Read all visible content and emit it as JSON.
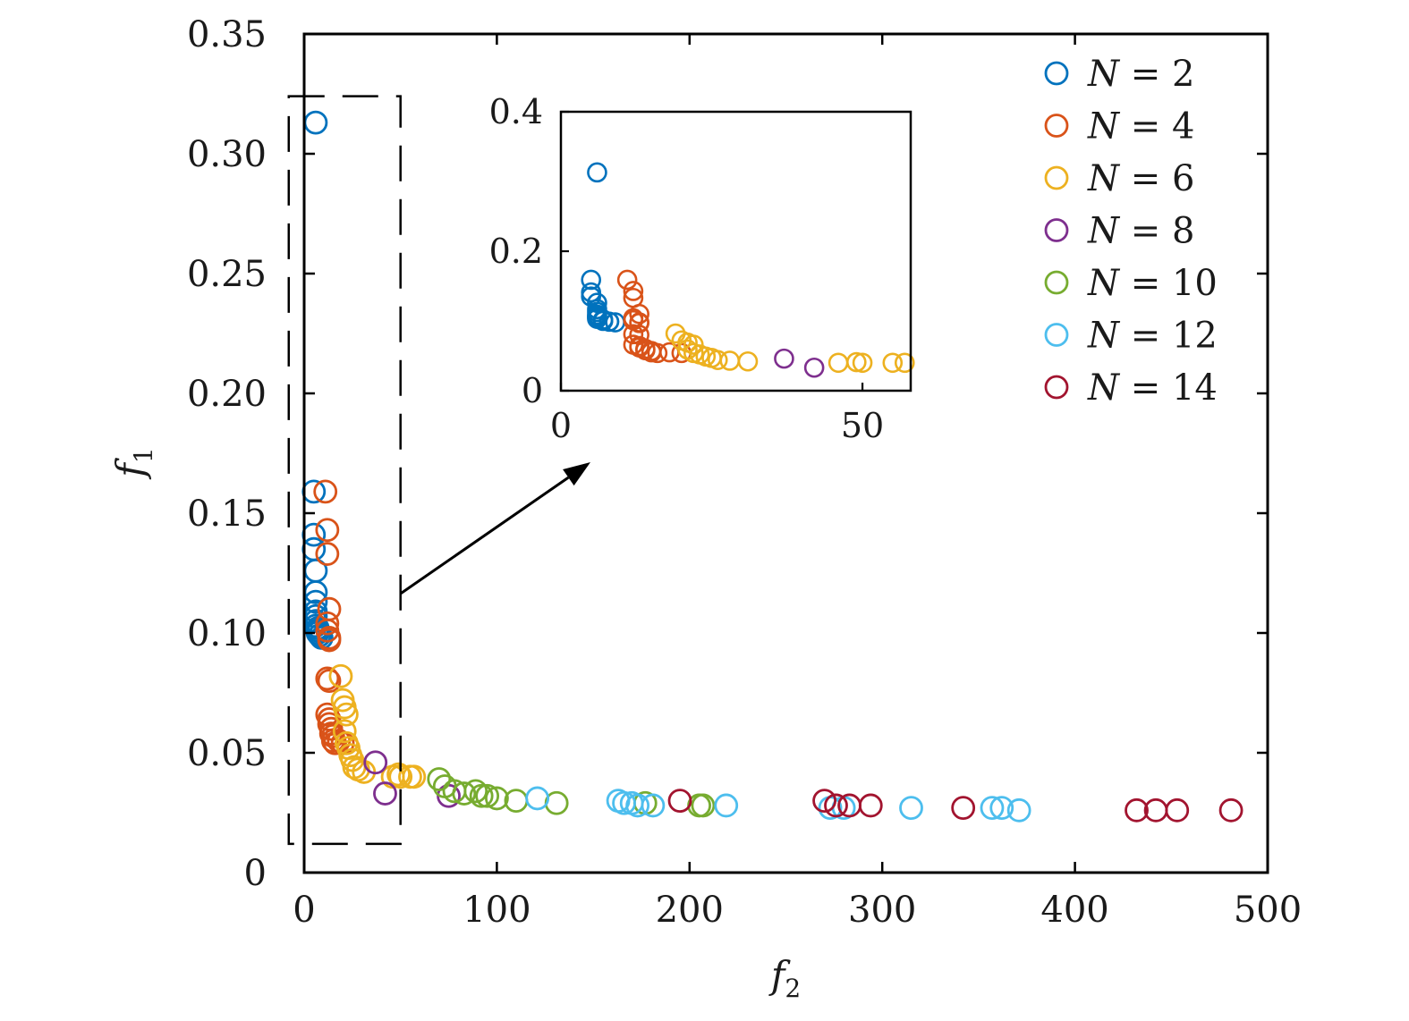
{
  "chart_data": {
    "type": "scatter",
    "xlabel": "f",
    "xlabel_sub": "2",
    "ylabel": "f",
    "ylabel_sub": "1",
    "xlim": [
      0,
      500
    ],
    "ylim": [
      0,
      0.35
    ],
    "xticks": [
      0,
      100,
      200,
      300,
      400,
      500
    ],
    "xtick_labels": [
      "0",
      "100",
      "200",
      "300",
      "400",
      "500"
    ],
    "yticks": [
      0,
      0.05,
      0.1,
      0.15,
      0.2,
      0.25,
      0.3,
      0.35
    ],
    "ytick_labels": [
      "0",
      "0.05",
      "0.10",
      "0.15",
      "0.20",
      "0.25",
      "0.30",
      "0.35"
    ],
    "grid": false,
    "legend_position": "top-right",
    "marker": "open-circle",
    "zoom_region": {
      "x": [
        -8,
        50
      ],
      "y": [
        0.012,
        0.324
      ]
    },
    "inset": {
      "xlim": [
        0,
        58
      ],
      "ylim": [
        0,
        0.4
      ],
      "xticks": [
        0,
        50
      ],
      "xtick_labels": [
        "0",
        "50"
      ],
      "yticks": [
        0,
        0.2,
        0.4
      ],
      "ytick_labels": [
        "0",
        "0.2",
        "0.4"
      ]
    },
    "series": [
      {
        "name": "N = 2",
        "color": "#0072BD",
        "x": [
          6,
          5,
          5,
          5,
          6,
          6,
          6,
          6,
          6,
          6,
          6,
          7,
          7,
          7,
          8,
          8,
          9
        ],
        "y": [
          0.313,
          0.159,
          0.141,
          0.135,
          0.126,
          0.117,
          0.113,
          0.109,
          0.107,
          0.105,
          0.103,
          0.102,
          0.101,
          0.1,
          0.099,
          0.099,
          0.098
        ]
      },
      {
        "name": "N = 4",
        "color": "#D95319",
        "x": [
          11,
          12,
          12,
          13,
          12,
          12,
          13,
          13,
          12,
          13,
          12,
          13,
          13,
          14,
          14,
          15,
          15,
          16,
          18,
          20
        ],
        "y": [
          0.159,
          0.143,
          0.133,
          0.11,
          0.104,
          0.101,
          0.098,
          0.097,
          0.081,
          0.08,
          0.066,
          0.064,
          0.062,
          0.06,
          0.058,
          0.057,
          0.055,
          0.054,
          0.055,
          0.054
        ]
      },
      {
        "name": "N = 6",
        "color": "#EDB120",
        "x": [
          19,
          20,
          21,
          22,
          21,
          22,
          23,
          24,
          25,
          26,
          28,
          31,
          46,
          49,
          50,
          55,
          57
        ],
        "y": [
          0.082,
          0.072,
          0.069,
          0.066,
          0.059,
          0.054,
          0.052,
          0.049,
          0.047,
          0.044,
          0.043,
          0.042,
          0.04,
          0.041,
          0.04,
          0.04,
          0.04
        ]
      },
      {
        "name": "N = 8",
        "color": "#7E2F8E",
        "x": [
          37,
          42,
          75
        ],
        "y": [
          0.046,
          0.033,
          0.032
        ]
      },
      {
        "name": "N = 10",
        "color": "#77AC30",
        "x": [
          70,
          73,
          78,
          83,
          89,
          92,
          95,
          100,
          110,
          131,
          205,
          207,
          177
        ],
        "y": [
          0.039,
          0.036,
          0.034,
          0.033,
          0.034,
          0.032,
          0.032,
          0.031,
          0.03,
          0.029,
          0.028,
          0.028,
          0.029
        ]
      },
      {
        "name": "N = 12",
        "color": "#4DBEEE",
        "x": [
          121,
          163,
          166,
          170,
          173,
          181,
          219,
          273,
          315,
          357,
          362,
          371,
          280
        ],
        "y": [
          0.031,
          0.03,
          0.029,
          0.029,
          0.028,
          0.028,
          0.028,
          0.027,
          0.027,
          0.027,
          0.027,
          0.026,
          0.027
        ]
      },
      {
        "name": "N = 14",
        "color": "#A2142F",
        "x": [
          195,
          270,
          276,
          283,
          294,
          342,
          432,
          442,
          453,
          481
        ],
        "y": [
          0.03,
          0.03,
          0.028,
          0.028,
          0.028,
          0.027,
          0.026,
          0.026,
          0.026,
          0.026
        ]
      }
    ]
  }
}
